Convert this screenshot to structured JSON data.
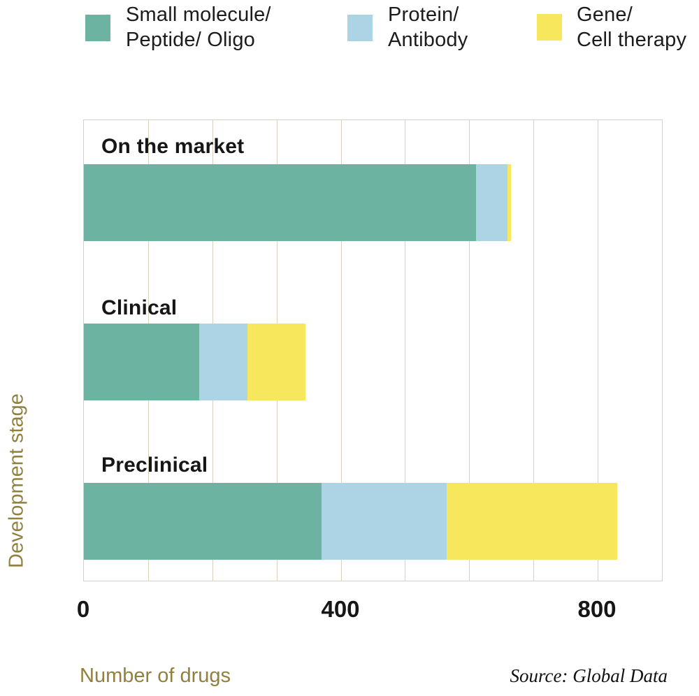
{
  "legend": {
    "items": [
      {
        "line1": "Small molecule/",
        "line2": "Peptide/ Oligo",
        "color": "#6db3a2"
      },
      {
        "line1": "Protein/",
        "line2": "Antibody",
        "color": "#acd4e4"
      },
      {
        "line1": "Gene/",
        "line2": "Cell therapy",
        "color": "#f6e75d"
      }
    ]
  },
  "chart_data": {
    "type": "bar",
    "orientation": "horizontal",
    "stacked": true,
    "categories": [
      "On the market",
      "Clinical",
      "Preclinical"
    ],
    "series": [
      {
        "name": "Small molecule/ Peptide/ Oligo",
        "color": "#6db3a2",
        "values": [
          610,
          180,
          370
        ]
      },
      {
        "name": "Protein/ Antibody",
        "color": "#acd4e4",
        "values": [
          50,
          75,
          195
        ]
      },
      {
        "name": "Gene/ Cell therapy",
        "color": "#f6e75d",
        "values": [
          5,
          90,
          265
        ]
      }
    ],
    "totals": [
      665,
      345,
      830
    ],
    "title": "",
    "xlabel": "Number of drugs",
    "ylabel": "Development stage",
    "xlim": [
      0,
      900
    ],
    "x_ticks": [
      0,
      400,
      800
    ],
    "gridline_interval": 100,
    "grid": true,
    "legend_position": "top"
  },
  "source": {
    "text": "Source: Global Data"
  },
  "colors": {
    "grid": "#d6d0be",
    "axis_caption": "#91813f",
    "text": "#161616",
    "background": "#ffffff"
  }
}
